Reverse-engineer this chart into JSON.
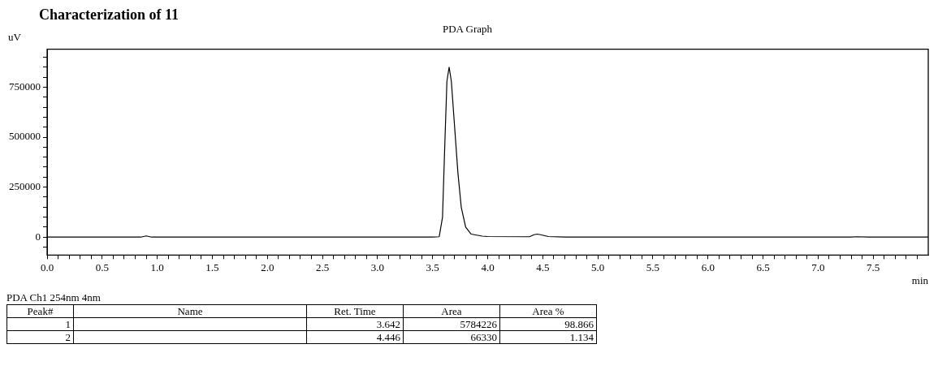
{
  "chart_data": {
    "type": "line",
    "title": "PDA Graph",
    "ylabel": "uV",
    "xlabel": "min",
    "annotations": [
      "Characterization of 11",
      "PDA Ch1 254nm 4nm",
      "Peak#",
      "Name",
      "Ret. Time",
      "Area",
      "Area %",
      "1",
      "3.642",
      "5784226",
      "98.866",
      "2",
      "4.446",
      "66330",
      "1.134"
    ],
    "series": [
      {
        "color": "#000000",
        "x": [
          0,
          0.85,
          0.9,
          0.95,
          3.5,
          3.56,
          3.59,
          3.61,
          3.63,
          3.65,
          3.67,
          3.7,
          3.73,
          3.76,
          3.8,
          3.85,
          3.95,
          4.0,
          4.38,
          4.42,
          4.45,
          4.48,
          4.55,
          4.7,
          7.3,
          7.35,
          7.45,
          8
        ],
        "values": [
          0,
          0,
          6000,
          0,
          0,
          2000,
          100000,
          450000,
          780000,
          850000,
          780000,
          550000,
          320000,
          150000,
          50000,
          15000,
          5000,
          3000,
          2000,
          12000,
          15000,
          12000,
          3000,
          0,
          0,
          2000,
          0,
          0
        ]
      }
    ],
    "xlim": [
      0,
      8
    ],
    "ylim": [
      -90000,
      940000
    ],
    "xticks": [
      {
        "value": 0,
        "label": "0.0"
      },
      {
        "value": 0.1,
        "label": null
      },
      {
        "value": 0.2,
        "label": null
      },
      {
        "value": 0.3,
        "label": null
      },
      {
        "value": 0.4,
        "label": null
      },
      {
        "value": 0.5,
        "label": "0.5"
      },
      {
        "value": 0.6,
        "label": null
      },
      {
        "value": 0.7,
        "label": null
      },
      {
        "value": 0.8,
        "label": null
      },
      {
        "value": 0.9,
        "label": null
      },
      {
        "value": 1,
        "label": "1.0"
      },
      {
        "value": 1.1,
        "label": null
      },
      {
        "value": 1.2,
        "label": null
      },
      {
        "value": 1.3,
        "label": null
      },
      {
        "value": 1.4,
        "label": null
      },
      {
        "value": 1.5,
        "label": "1.5"
      },
      {
        "value": 1.6,
        "label": null
      },
      {
        "value": 1.7,
        "label": null
      },
      {
        "value": 1.8,
        "label": null
      },
      {
        "value": 1.9,
        "label": null
      },
      {
        "value": 2,
        "label": "2.0"
      },
      {
        "value": 2.1,
        "label": null
      },
      {
        "value": 2.2,
        "label": null
      },
      {
        "value": 2.3,
        "label": null
      },
      {
        "value": 2.4,
        "label": null
      },
      {
        "value": 2.5,
        "label": "2.5"
      },
      {
        "value": 2.6,
        "label": null
      },
      {
        "value": 2.7,
        "label": null
      },
      {
        "value": 2.8,
        "label": null
      },
      {
        "value": 2.9,
        "label": null
      },
      {
        "value": 3,
        "label": "3.0"
      },
      {
        "value": 3.1,
        "label": null
      },
      {
        "value": 3.2,
        "label": null
      },
      {
        "value": 3.3,
        "label": null
      },
      {
        "value": 3.4,
        "label": null
      },
      {
        "value": 3.5,
        "label": "3.5"
      },
      {
        "value": 3.6,
        "label": null
      },
      {
        "value": 3.7,
        "label": null
      },
      {
        "value": 3.8,
        "label": null
      },
      {
        "value": 3.9,
        "label": null
      },
      {
        "value": 4,
        "label": "4.0"
      },
      {
        "value": 4.1,
        "label": null
      },
      {
        "value": 4.2,
        "label": null
      },
      {
        "value": 4.3,
        "label": null
      },
      {
        "value": 4.4,
        "label": null
      },
      {
        "value": 4.5,
        "label": "4.5"
      },
      {
        "value": 4.6,
        "label": null
      },
      {
        "value": 4.7,
        "label": null
      },
      {
        "value": 4.8,
        "label": null
      },
      {
        "value": 4.9,
        "label": null
      },
      {
        "value": 5,
        "label": "5.0"
      },
      {
        "value": 5.1,
        "label": null
      },
      {
        "value": 5.2,
        "label": null
      },
      {
        "value": 5.3,
        "label": null
      },
      {
        "value": 5.4,
        "label": null
      },
      {
        "value": 5.5,
        "label": "5.5"
      },
      {
        "value": 5.6,
        "label": null
      },
      {
        "value": 5.7,
        "label": null
      },
      {
        "value": 5.8,
        "label": null
      },
      {
        "value": 5.9,
        "label": null
      },
      {
        "value": 6,
        "label": "6.0"
      },
      {
        "value": 6.1,
        "label": null
      },
      {
        "value": 6.2,
        "label": null
      },
      {
        "value": 6.3,
        "label": null
      },
      {
        "value": 6.4,
        "label": null
      },
      {
        "value": 6.5,
        "label": "6.5"
      },
      {
        "value": 6.6,
        "label": null
      },
      {
        "value": 6.7,
        "label": null
      },
      {
        "value": 6.8,
        "label": null
      },
      {
        "value": 6.9,
        "label": null
      },
      {
        "value": 7,
        "label": "7.0"
      },
      {
        "value": 7.1,
        "label": null
      },
      {
        "value": 7.2,
        "label": null
      },
      {
        "value": 7.3,
        "label": null
      },
      {
        "value": 7.4,
        "label": null
      },
      {
        "value": 7.5,
        "label": "7.5"
      },
      {
        "value": 7.6,
        "label": null
      },
      {
        "value": 7.7,
        "label": null
      },
      {
        "value": 7.8,
        "label": null
      },
      {
        "value": 7.9,
        "label": null
      }
    ],
    "yticks": [
      {
        "value": -50000,
        "label": null
      },
      0,
      {
        "value": 50000,
        "label": null
      },
      {
        "value": 100000,
        "label": null
      },
      {
        "value": 150000,
        "label": null
      },
      {
        "value": 200000,
        "label": null
      },
      250000,
      {
        "value": 300000,
        "label": null
      },
      {
        "value": 350000,
        "label": null
      },
      {
        "value": 400000,
        "label": null
      },
      {
        "value": 450000,
        "label": null
      },
      500000,
      {
        "value": 550000,
        "label": null
      },
      {
        "value": 600000,
        "label": null
      },
      {
        "value": 650000,
        "label": null
      },
      {
        "value": 700000,
        "label": null
      },
      750000,
      {
        "value": 800000,
        "label": null
      },
      {
        "value": 850000,
        "label": null
      },
      {
        "value": 900000,
        "label": null
      }
    ],
    "grid": false,
    "legend": false,
    "marker": "none",
    "line_style": "solid"
  }
}
